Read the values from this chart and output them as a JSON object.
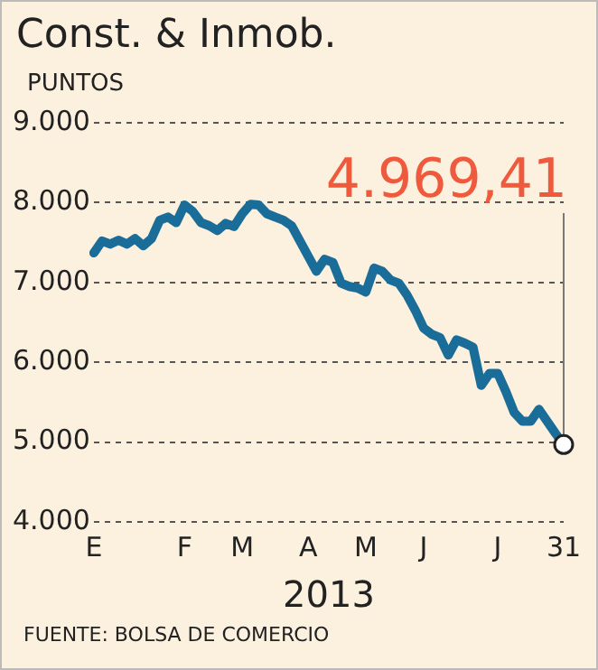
{
  "chart_data": {
    "type": "line",
    "title": "Const. & Inmob.",
    "ylabel": "PUNTOS",
    "xlabel": "2013",
    "annotations": [
      {
        "text": "4.969,41",
        "x": "31",
        "y": 4969.41
      },
      "FUENTE: BOLSA DE COMERCIO"
    ],
    "categories": [
      "E",
      null,
      null,
      null,
      null,
      null,
      null,
      null,
      null,
      null,
      null,
      "F",
      null,
      null,
      null,
      null,
      null,
      null,
      "M",
      null,
      null,
      null,
      null,
      null,
      null,
      null,
      "A",
      null,
      null,
      null,
      null,
      null,
      null,
      "M",
      null,
      null,
      null,
      null,
      null,
      null,
      "J",
      null,
      null,
      null,
      null,
      null,
      null,
      null,
      null,
      "J",
      null,
      null,
      null,
      null,
      null,
      null,
      null,
      "31"
    ],
    "series": [
      {
        "color": "#1a6d98",
        "values": [
          7370,
          7520,
          7480,
          7530,
          7480,
          7550,
          7460,
          7550,
          7780,
          7820,
          7750,
          7970,
          7890,
          7750,
          7710,
          7650,
          7740,
          7700,
          7860,
          7980,
          7970,
          7860,
          7820,
          7780,
          7710,
          7520,
          7330,
          7140,
          7290,
          7250,
          6990,
          6950,
          6930,
          6880,
          7180,
          7140,
          7030,
          6990,
          6840,
          6650,
          6430,
          6350,
          6310,
          6090,
          6280,
          6240,
          6190,
          5710,
          5860,
          5860,
          5630,
          5370,
          5260,
          5260,
          5410,
          5260,
          5110,
          4969.41
        ]
      }
    ],
    "ylim": [
      4000,
      9000
    ],
    "yticks": [
      {
        "value": 4000,
        "label": "4.000"
      },
      {
        "value": 5000,
        "label": "5.000"
      },
      {
        "value": 6000,
        "label": "6.000"
      },
      {
        "value": 7000,
        "label": "7.000"
      },
      {
        "value": 8000,
        "label": "8.000"
      },
      {
        "value": 9000,
        "label": "9.000"
      }
    ],
    "grid": "y",
    "marker": "none",
    "line_style": "solid",
    "legend": false
  }
}
